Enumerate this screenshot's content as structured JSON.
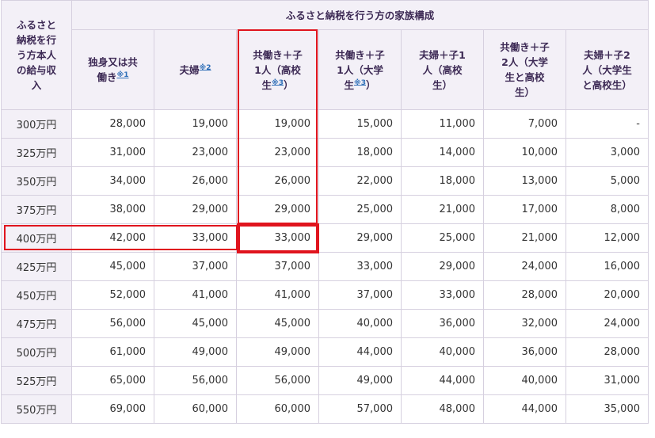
{
  "table": {
    "corner_header": [
      "ふるさと",
      "納税を行",
      "う方本人",
      "の給与収",
      "入"
    ],
    "family_header": "ふるさと納税を行う方の家族構成",
    "columns": [
      {
        "lines": [
          "独身又は共",
          "働き"
        ],
        "note": "※1"
      },
      {
        "lines": [
          "夫婦"
        ],
        "note": "※2"
      },
      {
        "lines": [
          "共働き＋子",
          "1人（高校",
          "生"
        ],
        "note": "※3",
        "tail": "）"
      },
      {
        "lines": [
          "共働き＋子",
          "1人（大学",
          "生"
        ],
        "note": "※3",
        "tail": "）"
      },
      {
        "lines": [
          "夫婦＋子1",
          "人（高校",
          "生）"
        ],
        "note": ""
      },
      {
        "lines": [
          "共働き＋子",
          "2人（大学",
          "生と高校",
          "生）"
        ],
        "note": ""
      },
      {
        "lines": [
          "夫婦＋子2",
          "人（大学生",
          "と高校生）"
        ],
        "note": ""
      }
    ],
    "rows": [
      {
        "income": "300万円",
        "values": [
          "28,000",
          "19,000",
          "19,000",
          "15,000",
          "11,000",
          "7,000",
          "-"
        ]
      },
      {
        "income": "325万円",
        "values": [
          "31,000",
          "23,000",
          "23,000",
          "18,000",
          "14,000",
          "10,000",
          "3,000"
        ]
      },
      {
        "income": "350万円",
        "values": [
          "34,000",
          "26,000",
          "26,000",
          "22,000",
          "18,000",
          "13,000",
          "5,000"
        ]
      },
      {
        "income": "375万円",
        "values": [
          "38,000",
          "29,000",
          "29,000",
          "25,000",
          "21,000",
          "17,000",
          "8,000"
        ]
      },
      {
        "income": "400万円",
        "values": [
          "42,000",
          "33,000",
          "33,000",
          "29,000",
          "25,000",
          "21,000",
          "12,000"
        ]
      },
      {
        "income": "425万円",
        "values": [
          "45,000",
          "37,000",
          "37,000",
          "33,000",
          "29,000",
          "24,000",
          "16,000"
        ]
      },
      {
        "income": "450万円",
        "values": [
          "52,000",
          "41,000",
          "41,000",
          "37,000",
          "33,000",
          "28,000",
          "20,000"
        ]
      },
      {
        "income": "475万円",
        "values": [
          "56,000",
          "45,000",
          "45,000",
          "40,000",
          "36,000",
          "32,000",
          "24,000"
        ]
      },
      {
        "income": "500万円",
        "values": [
          "61,000",
          "49,000",
          "49,000",
          "44,000",
          "40,000",
          "36,000",
          "28,000"
        ]
      },
      {
        "income": "525万円",
        "values": [
          "65,000",
          "56,000",
          "56,000",
          "49,000",
          "44,000",
          "40,000",
          "31,000"
        ]
      },
      {
        "income": "550万円",
        "values": [
          "69,000",
          "60,000",
          "60,000",
          "57,000",
          "48,000",
          "44,000",
          "35,000"
        ]
      }
    ]
  },
  "highlight_color": "#e0141e"
}
